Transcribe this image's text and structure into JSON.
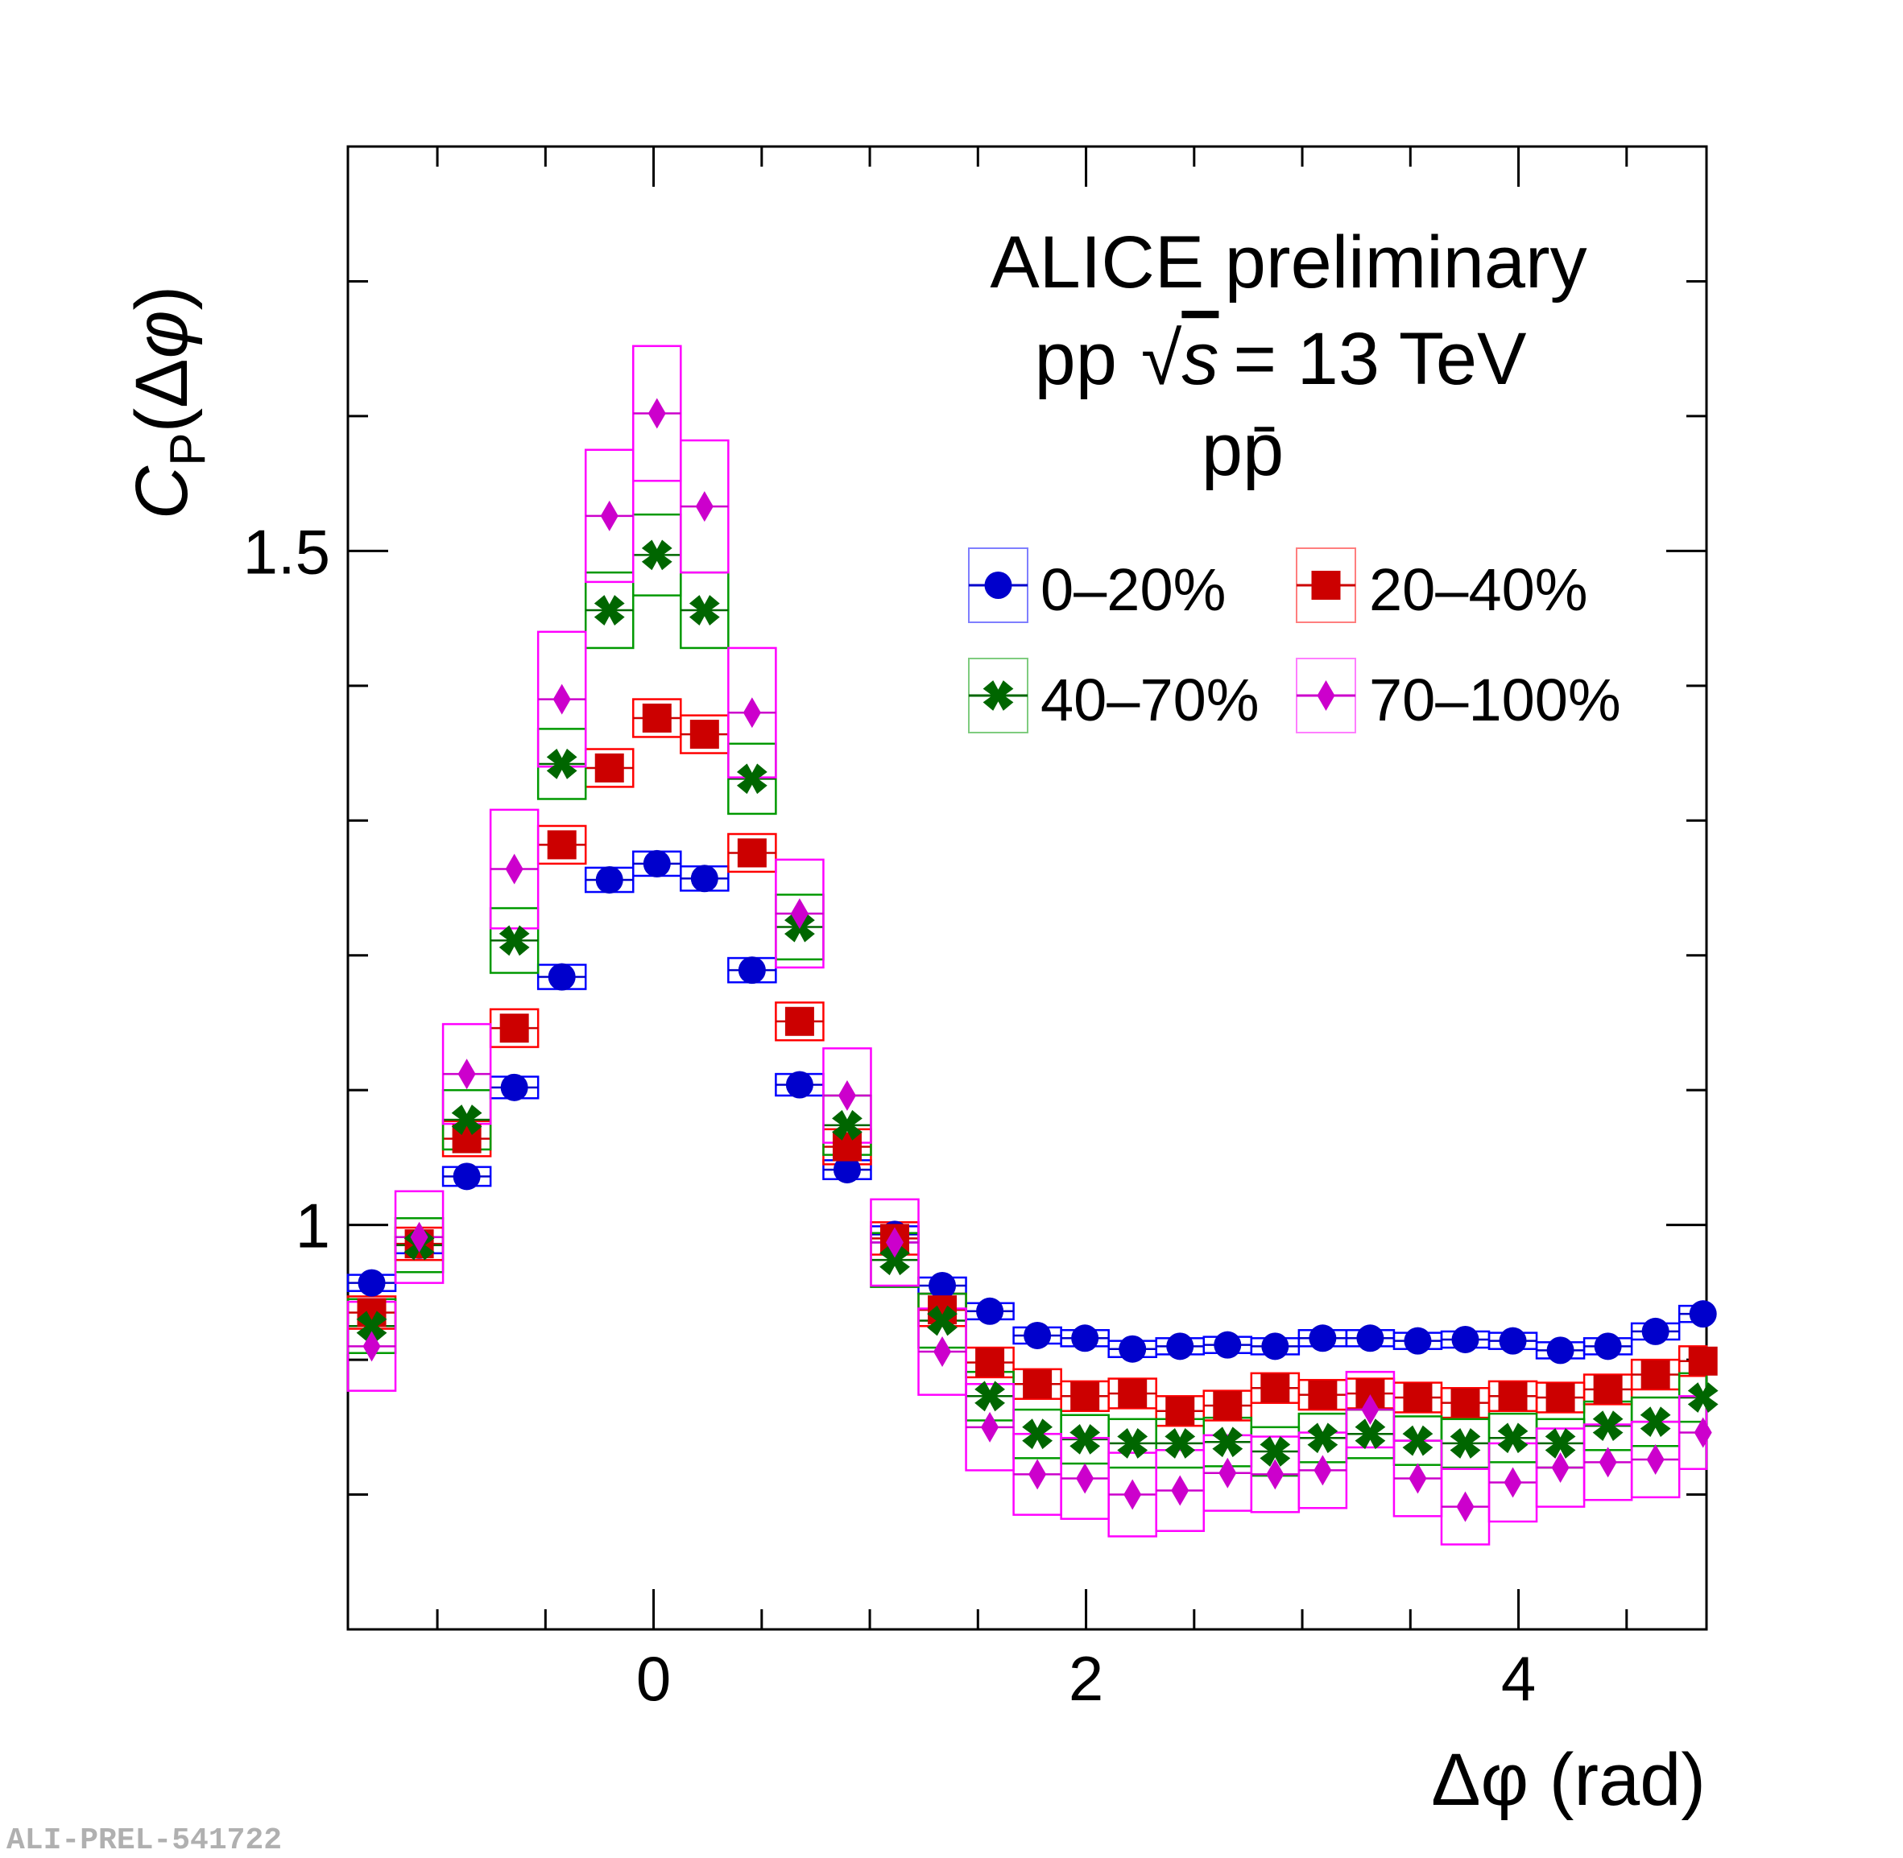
{
  "watermark": "ALI-PREL-541722",
  "colors": {
    "s0": "#0000cc",
    "s0_box": "#0000ff",
    "s1": "#cc0000",
    "s1_box": "#ff0000",
    "s2": "#006600",
    "s2_box": "#009900",
    "s3": "#cc00cc",
    "s3_box": "#ff00ff"
  },
  "chart_data": {
    "type": "scatter",
    "title": "",
    "annotations": {
      "line1": "ALICE preliminary",
      "line2_prefix": "pp",
      "line2_sqrt": "√",
      "line2_s": "s",
      "line2_suffix": "= 13 TeV",
      "line3": "pp̄"
    },
    "xlabel": "Δφ (rad)",
    "ylabel": "C_P(Δφ)",
    "ylabel_parts": {
      "c": "C",
      "sub": "P",
      "open": "(Δ",
      "phi": "φ",
      "close": ")"
    },
    "xlim": [
      -1.4137,
      4.8695
    ],
    "ylim": [
      0.7,
      1.8
    ],
    "xticks": [
      0,
      2,
      4
    ],
    "xtick_labels": [
      "0",
      "2",
      "4"
    ],
    "yticks": [
      1.0,
      1.5
    ],
    "ytick_labels": [
      "1",
      "1.5"
    ],
    "x_minor": 0.5,
    "y_minor": 0.1,
    "bin_width": 0.2199,
    "x": [
      -1.3037,
      -1.0838,
      -0.8639,
      -0.644,
      -0.4241,
      -0.2042,
      0.0157,
      0.2356,
      0.4555,
      0.6754,
      0.8953,
      1.1152,
      1.3351,
      1.555,
      1.7749,
      1.9948,
      2.2147,
      2.4346,
      2.6545,
      2.8744,
      3.0943,
      3.3142,
      3.5341,
      3.754,
      3.9739,
      4.1938,
      4.4137,
      4.6336,
      4.8535
    ],
    "legend_position": "top-right",
    "series": [
      {
        "name": "0–20%",
        "marker": "circle",
        "values": [
          0.957,
          0.985,
          1.036,
          1.102,
          1.184,
          1.256,
          1.268,
          1.257,
          1.189,
          1.104,
          1.041,
          0.993,
          0.955,
          0.936,
          0.918,
          0.916,
          0.908,
          0.91,
          0.911,
          0.91,
          0.916,
          0.916,
          0.914,
          0.915,
          0.914,
          0.907,
          0.91,
          0.921,
          0.934
        ],
        "syst": [
          0.006,
          0.006,
          0.007,
          0.008,
          0.009,
          0.009,
          0.009,
          0.009,
          0.009,
          0.008,
          0.007,
          0.006,
          0.006,
          0.006,
          0.006,
          0.006,
          0.006,
          0.006,
          0.006,
          0.006,
          0.006,
          0.006,
          0.006,
          0.006,
          0.006,
          0.006,
          0.006,
          0.006,
          0.006
        ]
      },
      {
        "name": "20–40%",
        "marker": "square",
        "values": [
          0.935,
          0.986,
          1.064,
          1.146,
          1.282,
          1.339,
          1.376,
          1.364,
          1.276,
          1.151,
          1.058,
          0.99,
          0.937,
          0.898,
          0.882,
          0.873,
          0.875,
          0.862,
          0.866,
          0.879,
          0.874,
          0.875,
          0.872,
          0.868,
          0.873,
          0.872,
          0.878,
          0.889,
          0.899
        ],
        "syst": [
          0.012,
          0.012,
          0.013,
          0.014,
          0.014,
          0.014,
          0.014,
          0.014,
          0.014,
          0.014,
          0.013,
          0.012,
          0.012,
          0.011,
          0.011,
          0.011,
          0.011,
          0.011,
          0.011,
          0.011,
          0.011,
          0.011,
          0.011,
          0.011,
          0.011,
          0.011,
          0.011,
          0.011,
          0.011
        ]
      },
      {
        "name": "40–70%",
        "marker": "cross",
        "values": [
          0.925,
          0.985,
          1.078,
          1.211,
          1.342,
          1.456,
          1.497,
          1.456,
          1.331,
          1.221,
          1.074,
          0.974,
          0.929,
          0.873,
          0.845,
          0.841,
          0.838,
          0.838,
          0.839,
          0.832,
          0.842,
          0.845,
          0.84,
          0.838,
          0.842,
          0.838,
          0.851,
          0.854,
          0.872
        ],
        "syst": [
          0.02,
          0.02,
          0.022,
          0.024,
          0.026,
          0.028,
          0.03,
          0.028,
          0.026,
          0.024,
          0.022,
          0.02,
          0.02,
          0.018,
          0.018,
          0.018,
          0.018,
          0.018,
          0.018,
          0.018,
          0.018,
          0.018,
          0.018,
          0.018,
          0.018,
          0.018,
          0.018,
          0.018,
          0.018
        ]
      },
      {
        "name": "70–100%",
        "marker": "diamond",
        "values": [
          0.91,
          0.991,
          1.112,
          1.264,
          1.39,
          1.526,
          1.602,
          1.533,
          1.38,
          1.231,
          1.096,
          0.987,
          0.906,
          0.85,
          0.815,
          0.812,
          0.8,
          0.803,
          0.816,
          0.815,
          0.818,
          0.863,
          0.812,
          0.791,
          0.809,
          0.82,
          0.824,
          0.826,
          0.846
        ],
        "syst": [
          0.033,
          0.034,
          0.037,
          0.044,
          0.05,
          0.049,
          0.05,
          0.049,
          0.048,
          0.04,
          0.035,
          0.032,
          0.032,
          0.032,
          0.03,
          0.03,
          0.031,
          0.03,
          0.028,
          0.028,
          0.028,
          0.028,
          0.028,
          0.028,
          0.029,
          0.029,
          0.028,
          0.028,
          0.027
        ]
      }
    ]
  }
}
